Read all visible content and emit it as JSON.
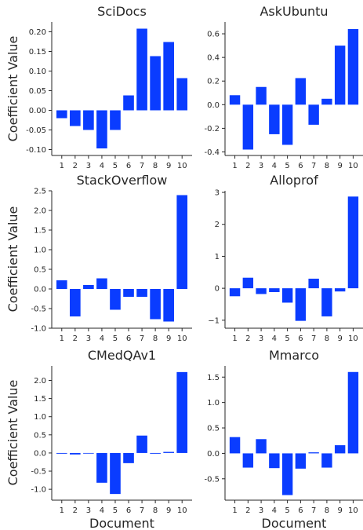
{
  "figure": {
    "bar_color": "#0a3cff",
    "ylabel_text": "Coefficient Value",
    "xlabel_text": "Document"
  },
  "chart_data": [
    {
      "type": "bar",
      "title": "SciDocs",
      "categories": [
        "1",
        "2",
        "3",
        "4",
        "5",
        "6",
        "7",
        "8",
        "9",
        "10"
      ],
      "values": [
        -0.02,
        -0.04,
        -0.05,
        -0.097,
        -0.05,
        0.038,
        0.208,
        0.138,
        0.174,
        0.082
      ],
      "ylim": [
        -0.115,
        0.225
      ],
      "yticks": [
        -0.1,
        -0.05,
        0.0,
        0.05,
        0.1,
        0.15,
        0.2
      ],
      "ytick_labels": [
        "-0.10",
        "-0.05",
        "0.00",
        "0.05",
        "0.10",
        "0.15",
        "0.20"
      ],
      "ylabel": "Coefficient Value",
      "xlabel": ""
    },
    {
      "type": "bar",
      "title": "AskUbuntu",
      "categories": [
        "1",
        "2",
        "3",
        "4",
        "5",
        "6",
        "7",
        "8",
        "9",
        "10"
      ],
      "values": [
        0.08,
        -0.38,
        0.15,
        -0.25,
        -0.34,
        0.225,
        -0.17,
        0.05,
        0.5,
        0.64
      ],
      "ylim": [
        -0.43,
        0.7
      ],
      "yticks": [
        -0.4,
        -0.2,
        0.0,
        0.2,
        0.4,
        0.6
      ],
      "ytick_labels": [
        "-0.4",
        "-0.2",
        "0.0",
        "0.2",
        "0.4",
        "0.6"
      ],
      "ylabel": "",
      "xlabel": ""
    },
    {
      "type": "bar",
      "title": "StackOverflow",
      "categories": [
        "1",
        "2",
        "3",
        "4",
        "5",
        "6",
        "7",
        "8",
        "9",
        "10"
      ],
      "values": [
        0.22,
        -0.7,
        0.1,
        0.27,
        -0.53,
        -0.2,
        -0.2,
        -0.77,
        -0.83,
        2.39
      ],
      "ylim": [
        -1.0,
        2.5
      ],
      "yticks": [
        -1.0,
        -0.5,
        0.0,
        0.5,
        1.0,
        1.5,
        2.0,
        2.5
      ],
      "ytick_labels": [
        "-1.0",
        "-0.5",
        "0.0",
        "0.5",
        "1.0",
        "1.5",
        "2.0",
        "2.5"
      ],
      "ylabel": "Coefficient Value",
      "xlabel": ""
    },
    {
      "type": "bar",
      "title": "Alloprof",
      "categories": [
        "1",
        "2",
        "3",
        "4",
        "5",
        "6",
        "7",
        "8",
        "9",
        "10"
      ],
      "values": [
        -0.25,
        0.33,
        -0.18,
        -0.12,
        -0.45,
        -1.02,
        0.3,
        -0.88,
        -0.1,
        2.87
      ],
      "ylim": [
        -1.25,
        3.05
      ],
      "yticks": [
        -1,
        0,
        1,
        2,
        3
      ],
      "ytick_labels": [
        "−1",
        "0",
        "1",
        "2",
        "3"
      ],
      "ylabel": "",
      "xlabel": ""
    },
    {
      "type": "bar",
      "title": "CMedQAv1",
      "categories": [
        "1",
        "2",
        "3",
        "4",
        "5",
        "6",
        "7",
        "8",
        "9",
        "10"
      ],
      "values": [
        -0.02,
        -0.04,
        0.0,
        -0.82,
        -1.13,
        -0.28,
        0.48,
        -0.02,
        0.03,
        2.23
      ],
      "ylim": [
        -1.3,
        2.4
      ],
      "yticks": [
        -1.0,
        -0.5,
        0.0,
        0.5,
        1.0,
        1.5,
        2.0
      ],
      "ytick_labels": [
        "-1.0",
        "-0.5",
        "0.0",
        "0.5",
        "1.0",
        "1.5",
        "2.0"
      ],
      "ylabel": "Coefficient Value",
      "xlabel": "Document"
    },
    {
      "type": "bar",
      "title": "Mmarco",
      "categories": [
        "1",
        "2",
        "3",
        "4",
        "5",
        "6",
        "7",
        "8",
        "9",
        "10"
      ],
      "values": [
        0.32,
        -0.28,
        0.28,
        -0.29,
        -0.82,
        -0.3,
        0.02,
        -0.28,
        0.16,
        1.6
      ],
      "ylim": [
        -0.92,
        1.72
      ],
      "yticks": [
        -0.5,
        0.0,
        0.5,
        1.0,
        1.5
      ],
      "ytick_labels": [
        "-0.5",
        "0.0",
        "0.5",
        "1.0",
        "1.5"
      ],
      "ylabel": "",
      "xlabel": "Document"
    }
  ]
}
